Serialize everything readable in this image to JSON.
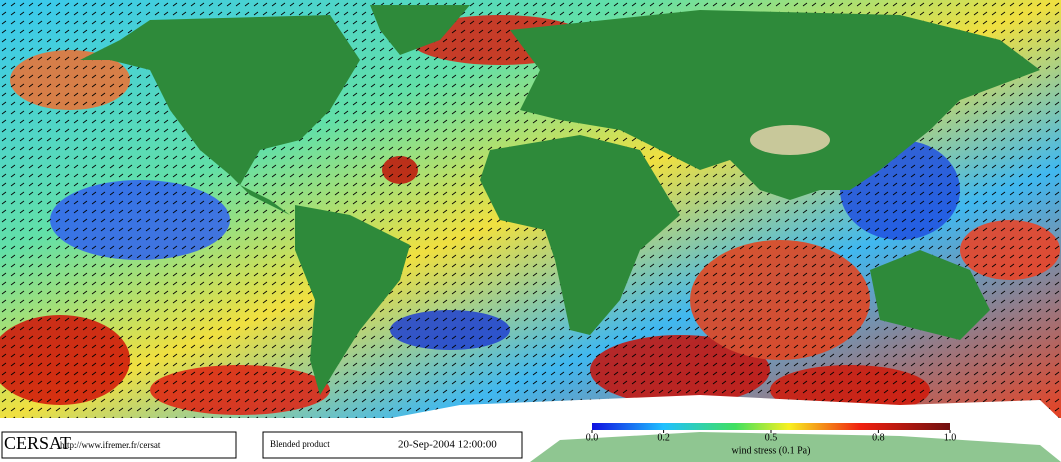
{
  "footer": {
    "logo": "CERSAT",
    "url": "http://www.ifremer.fr/cersat",
    "product": "Blended product",
    "date": "20-Sep-2004 12:00:00"
  },
  "colorbar": {
    "label": "wind stress (0.1 Pa)",
    "lim": [
      0,
      1
    ],
    "ticks": [
      {
        "value": 0,
        "label": "0.0"
      },
      0.2,
      0.5,
      0.8,
      {
        "value": 1,
        "label": "1.0"
      }
    ]
  }
}
